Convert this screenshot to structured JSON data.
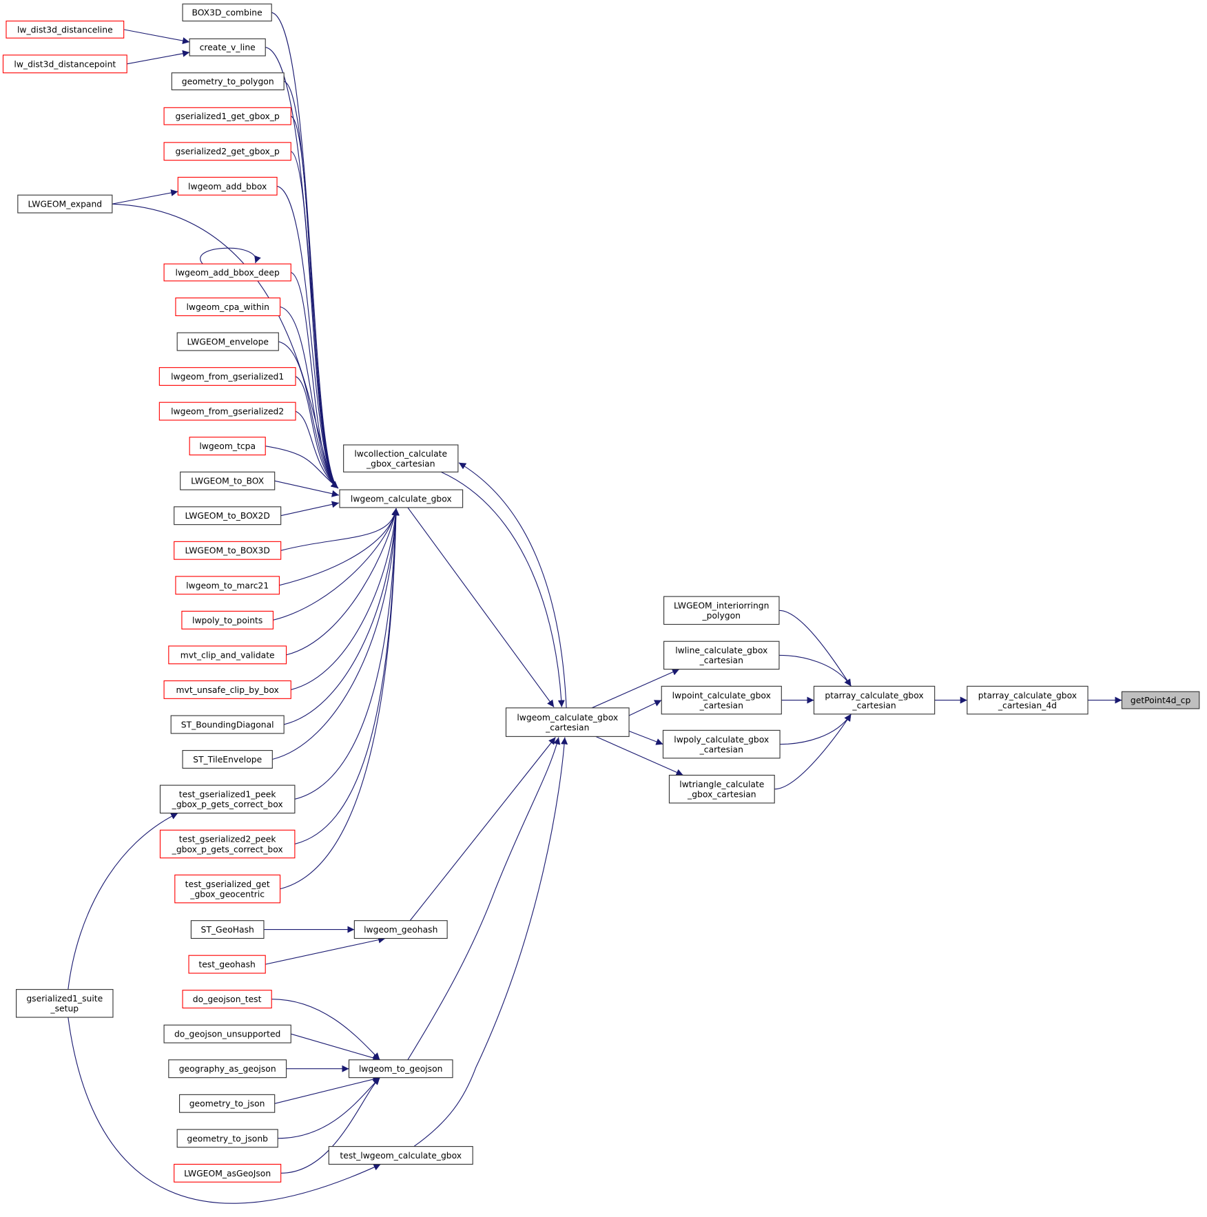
{
  "colors": {
    "edge": "#191970",
    "undocumented_border": "#ff0000",
    "documented_border": "#000000",
    "focus_fill": "#bfbfbf"
  },
  "nodes": [
    {
      "id": "box3d_combine",
      "lines": [
        "BOX3D_combine"
      ],
      "border": "black"
    },
    {
      "id": "lw_dist3d_distanceline",
      "lines": [
        "lw_dist3d_distanceline"
      ],
      "border": "red"
    },
    {
      "id": "create_v_line",
      "lines": [
        "create_v_line"
      ],
      "border": "black"
    },
    {
      "id": "lw_dist3d_distancepoint",
      "lines": [
        "lw_dist3d_distancepoint"
      ],
      "border": "red"
    },
    {
      "id": "geometry_to_polygon",
      "lines": [
        "geometry_to_polygon"
      ],
      "border": "black"
    },
    {
      "id": "gserialized1_get_gbox_p",
      "lines": [
        "gserialized1_get_gbox_p"
      ],
      "border": "red"
    },
    {
      "id": "gserialized2_get_gbox_p",
      "lines": [
        "gserialized2_get_gbox_p"
      ],
      "border": "red"
    },
    {
      "id": "lwgeom_add_bbox",
      "lines": [
        "lwgeom_add_bbox"
      ],
      "border": "red"
    },
    {
      "id": "lwgeom_expand",
      "lines": [
        "LWGEOM_expand"
      ],
      "border": "black"
    },
    {
      "id": "lwgeom_add_bbox_deep",
      "lines": [
        "lwgeom_add_bbox_deep"
      ],
      "border": "red"
    },
    {
      "id": "lwgeom_cpa_within",
      "lines": [
        "lwgeom_cpa_within"
      ],
      "border": "red"
    },
    {
      "id": "lwgeom_envelope",
      "lines": [
        "LWGEOM_envelope"
      ],
      "border": "black"
    },
    {
      "id": "lwgeom_from_gserialized1",
      "lines": [
        "lwgeom_from_gserialized1"
      ],
      "border": "red"
    },
    {
      "id": "lwgeom_from_gserialized2",
      "lines": [
        "lwgeom_from_gserialized2"
      ],
      "border": "red"
    },
    {
      "id": "lwgeom_tcpa",
      "lines": [
        "lwgeom_tcpa"
      ],
      "border": "red"
    },
    {
      "id": "lwgeom_to_box",
      "lines": [
        "LWGEOM_to_BOX"
      ],
      "border": "black"
    },
    {
      "id": "lwgeom_to_box2d",
      "lines": [
        "LWGEOM_to_BOX2D"
      ],
      "border": "black"
    },
    {
      "id": "lwgeom_to_box3d",
      "lines": [
        "LWGEOM_to_BOX3D"
      ],
      "border": "red"
    },
    {
      "id": "lwgeom_to_marc21",
      "lines": [
        "lwgeom_to_marc21"
      ],
      "border": "red"
    },
    {
      "id": "lwpoly_to_points",
      "lines": [
        "lwpoly_to_points"
      ],
      "border": "red"
    },
    {
      "id": "mvt_clip_and_validate",
      "lines": [
        "mvt_clip_and_validate"
      ],
      "border": "red"
    },
    {
      "id": "mvt_unsafe_clip_by_box",
      "lines": [
        "mvt_unsafe_clip_by_box"
      ],
      "border": "red"
    },
    {
      "id": "st_boundingdiagonal",
      "lines": [
        "ST_BoundingDiagonal"
      ],
      "border": "black"
    },
    {
      "id": "st_tileenvelope",
      "lines": [
        "ST_TileEnvelope"
      ],
      "border": "black"
    },
    {
      "id": "test_gs1_peek",
      "lines": [
        "test_gserialized1_peek",
        "_gbox_p_gets_correct_box"
      ],
      "border": "black"
    },
    {
      "id": "test_gs2_peek",
      "lines": [
        "test_gserialized2_peek",
        "_gbox_p_gets_correct_box"
      ],
      "border": "red"
    },
    {
      "id": "test_gs_get_geocentric",
      "lines": [
        "test_gserialized_get",
        "_gbox_geocentric"
      ],
      "border": "red"
    },
    {
      "id": "st_geohash",
      "lines": [
        "ST_GeoHash"
      ],
      "border": "black"
    },
    {
      "id": "test_geohash",
      "lines": [
        "test_geohash"
      ],
      "border": "red"
    },
    {
      "id": "do_geojson_test",
      "lines": [
        "do_geojson_test"
      ],
      "border": "red"
    },
    {
      "id": "do_geojson_unsupported",
      "lines": [
        "do_geojson_unsupported"
      ],
      "border": "black"
    },
    {
      "id": "geography_as_geojson",
      "lines": [
        "geography_as_geojson"
      ],
      "border": "black"
    },
    {
      "id": "geometry_to_json",
      "lines": [
        "geometry_to_json"
      ],
      "border": "black"
    },
    {
      "id": "geometry_to_jsonb",
      "lines": [
        "geometry_to_jsonb"
      ],
      "border": "black"
    },
    {
      "id": "lwgeom_asgeojson",
      "lines": [
        "LWGEOM_asGeoJson"
      ],
      "border": "red"
    },
    {
      "id": "gs1_suite_setup",
      "lines": [
        "gserialized1_suite",
        "_setup"
      ],
      "border": "black"
    },
    {
      "id": "lwcollection_cgc",
      "lines": [
        "lwcollection_calculate",
        "_gbox_cartesian"
      ],
      "border": "black"
    },
    {
      "id": "lwgeom_calculate_gbox",
      "lines": [
        "lwgeom_calculate_gbox"
      ],
      "border": "black"
    },
    {
      "id": "lwgeom_geohash",
      "lines": [
        "lwgeom_geohash"
      ],
      "border": "black"
    },
    {
      "id": "lwgeom_to_geojson",
      "lines": [
        "lwgeom_to_geojson"
      ],
      "border": "black"
    },
    {
      "id": "test_lwgeom_calculate_gbox",
      "lines": [
        "test_lwgeom_calculate_gbox"
      ],
      "border": "black"
    },
    {
      "id": "lwgeom_cgc",
      "lines": [
        "lwgeom_calculate_gbox",
        "_cartesian"
      ],
      "border": "black"
    },
    {
      "id": "lwgeom_interiorringn",
      "lines": [
        "LWGEOM_interiorringn",
        "_polygon"
      ],
      "border": "black"
    },
    {
      "id": "lwline_cgc",
      "lines": [
        "lwline_calculate_gbox",
        "_cartesian"
      ],
      "border": "black"
    },
    {
      "id": "lwpoint_cgc",
      "lines": [
        "lwpoint_calculate_gbox",
        "_cartesian"
      ],
      "border": "black"
    },
    {
      "id": "lwpoly_cgc",
      "lines": [
        "lwpoly_calculate_gbox",
        "_cartesian"
      ],
      "border": "black"
    },
    {
      "id": "lwtriangle_cgc",
      "lines": [
        "lwtriangle_calculate",
        "_gbox_cartesian"
      ],
      "border": "black"
    },
    {
      "id": "ptarray_cgc",
      "lines": [
        "ptarray_calculate_gbox",
        "_cartesian"
      ],
      "border": "black"
    },
    {
      "id": "ptarray_cgc_4d",
      "lines": [
        "ptarray_calculate_gbox",
        "_cartesian_4d"
      ],
      "border": "black"
    },
    {
      "id": "getpoint4d_cp",
      "lines": [
        "getPoint4d_cp"
      ],
      "border": "black",
      "focus": true
    }
  ],
  "edges": [
    [
      "lw_dist3d_distanceline",
      "create_v_line"
    ],
    [
      "lw_dist3d_distancepoint",
      "create_v_line"
    ],
    [
      "lwgeom_expand",
      "lwgeom_add_bbox"
    ],
    [
      "lwgeom_add_bbox_deep",
      "lwgeom_add_bbox_deep"
    ],
    [
      "box3d_combine",
      "lwgeom_calculate_gbox"
    ],
    [
      "create_v_line",
      "lwgeom_calculate_gbox"
    ],
    [
      "geometry_to_polygon",
      "lwgeom_calculate_gbox"
    ],
    [
      "gserialized1_get_gbox_p",
      "lwgeom_calculate_gbox"
    ],
    [
      "gserialized2_get_gbox_p",
      "lwgeom_calculate_gbox"
    ],
    [
      "lwgeom_add_bbox",
      "lwgeom_calculate_gbox"
    ],
    [
      "lwgeom_expand",
      "lwgeom_calculate_gbox"
    ],
    [
      "lwgeom_add_bbox_deep",
      "lwgeom_calculate_gbox"
    ],
    [
      "lwgeom_cpa_within",
      "lwgeom_calculate_gbox"
    ],
    [
      "lwgeom_envelope",
      "lwgeom_calculate_gbox"
    ],
    [
      "lwgeom_from_gserialized1",
      "lwgeom_calculate_gbox"
    ],
    [
      "lwgeom_from_gserialized2",
      "lwgeom_calculate_gbox"
    ],
    [
      "lwgeom_tcpa",
      "lwgeom_calculate_gbox"
    ],
    [
      "lwgeom_to_box",
      "lwgeom_calculate_gbox"
    ],
    [
      "lwgeom_to_box2d",
      "lwgeom_calculate_gbox"
    ],
    [
      "lwgeom_to_box3d",
      "lwgeom_calculate_gbox"
    ],
    [
      "lwgeom_to_marc21",
      "lwgeom_calculate_gbox"
    ],
    [
      "lwpoly_to_points",
      "lwgeom_calculate_gbox"
    ],
    [
      "mvt_clip_and_validate",
      "lwgeom_calculate_gbox"
    ],
    [
      "mvt_unsafe_clip_by_box",
      "lwgeom_calculate_gbox"
    ],
    [
      "st_boundingdiagonal",
      "lwgeom_calculate_gbox"
    ],
    [
      "st_tileenvelope",
      "lwgeom_calculate_gbox"
    ],
    [
      "test_gs1_peek",
      "lwgeom_calculate_gbox"
    ],
    [
      "test_gs2_peek",
      "lwgeom_calculate_gbox"
    ],
    [
      "test_gs_get_geocentric",
      "lwgeom_calculate_gbox"
    ],
    [
      "gs1_suite_setup",
      "test_gs1_peek"
    ],
    [
      "gs1_suite_setup",
      "test_lwgeom_calculate_gbox"
    ],
    [
      "st_geohash",
      "lwgeom_geohash"
    ],
    [
      "test_geohash",
      "lwgeom_geohash"
    ],
    [
      "do_geojson_test",
      "lwgeom_to_geojson"
    ],
    [
      "do_geojson_unsupported",
      "lwgeom_to_geojson"
    ],
    [
      "geography_as_geojson",
      "lwgeom_to_geojson"
    ],
    [
      "geometry_to_json",
      "lwgeom_to_geojson"
    ],
    [
      "geometry_to_jsonb",
      "lwgeom_to_geojson"
    ],
    [
      "lwgeom_asgeojson",
      "lwgeom_to_geojson"
    ],
    [
      "lwgeom_calculate_gbox",
      "lwgeom_cgc"
    ],
    [
      "lwcollection_cgc",
      "lwgeom_cgc"
    ],
    [
      "lwgeom_cgc",
      "lwcollection_cgc"
    ],
    [
      "lwgeom_geohash",
      "lwgeom_cgc"
    ],
    [
      "lwgeom_to_geojson",
      "lwgeom_cgc"
    ],
    [
      "test_lwgeom_calculate_gbox",
      "lwgeom_cgc"
    ],
    [
      "lwgeom_cgc",
      "lwline_cgc"
    ],
    [
      "lwgeom_cgc",
      "lwpoint_cgc"
    ],
    [
      "lwgeom_cgc",
      "lwpoly_cgc"
    ],
    [
      "lwgeom_cgc",
      "lwtriangle_cgc"
    ],
    [
      "lwgeom_interiorringn",
      "ptarray_cgc"
    ],
    [
      "lwline_cgc",
      "ptarray_cgc"
    ],
    [
      "lwpoint_cgc",
      "ptarray_cgc"
    ],
    [
      "lwpoly_cgc",
      "ptarray_cgc"
    ],
    [
      "lwtriangle_cgc",
      "ptarray_cgc"
    ],
    [
      "ptarray_cgc",
      "ptarray_cgc_4d"
    ],
    [
      "ptarray_cgc_4d",
      "getpoint4d_cp"
    ]
  ]
}
